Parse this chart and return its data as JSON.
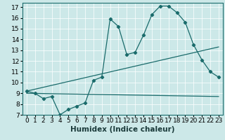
{
  "xlabel": "Humidex (Indice chaleur)",
  "bg_color": "#cce8e8",
  "line_color": "#1a6b6b",
  "grid_color": "#b8d8d8",
  "xlim": [
    -0.5,
    23.5
  ],
  "ylim": [
    7,
    17.4
  ],
  "xticks": [
    0,
    1,
    2,
    3,
    4,
    5,
    6,
    7,
    8,
    9,
    10,
    11,
    12,
    13,
    14,
    15,
    16,
    17,
    18,
    19,
    20,
    21,
    22,
    23
  ],
  "yticks": [
    7,
    8,
    9,
    10,
    11,
    12,
    13,
    14,
    15,
    16,
    17
  ],
  "series1_x": [
    0,
    1,
    2,
    3,
    4,
    5,
    6,
    7,
    8,
    9,
    10,
    11,
    12,
    13,
    14,
    15,
    16,
    17,
    18,
    19,
    20,
    21,
    22,
    23
  ],
  "series1_y": [
    9.2,
    9.0,
    8.5,
    8.7,
    7.0,
    7.5,
    7.8,
    8.1,
    10.2,
    10.5,
    15.9,
    15.2,
    12.6,
    12.8,
    14.4,
    16.3,
    17.1,
    17.1,
    16.5,
    15.6,
    13.5,
    12.1,
    11.0,
    10.5
  ],
  "series2_x": [
    0,
    23
  ],
  "series2_y": [
    9.0,
    8.7
  ],
  "series3_x": [
    0,
    23
  ],
  "series3_y": [
    9.2,
    13.3
  ],
  "label_fontsize": 7.5,
  "tick_fontsize": 6.5
}
